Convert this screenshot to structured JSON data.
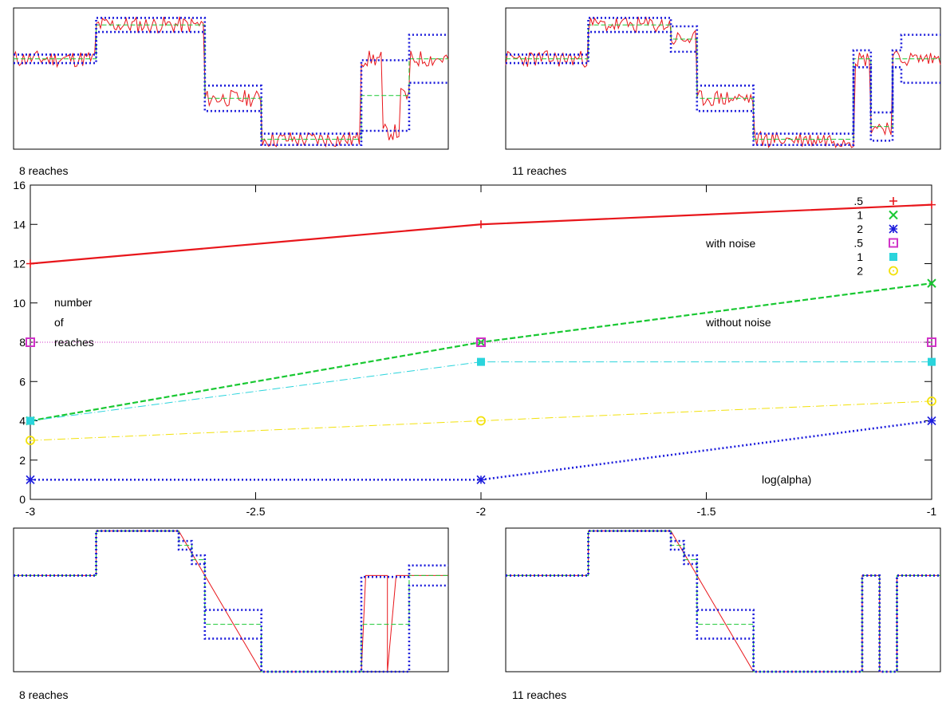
{
  "chart_data": [
    {
      "type": "line",
      "panel": "top-left",
      "caption": "8 reaches",
      "description_series": [
        {
          "name": "",
          "style": "noisy signal",
          "color": "#e8161b"
        },
        {
          "name": "",
          "style": "fitted levels",
          "color": "#19c832"
        },
        {
          "name": "",
          "style": "band",
          "color": "#1c1cdc"
        }
      ]
    },
    {
      "type": "line",
      "panel": "top-right",
      "caption": "11 reaches"
    },
    {
      "type": "line",
      "panel": "main",
      "x": [
        -3,
        -2,
        -1
      ],
      "xlim": [
        -3,
        -1
      ],
      "ylim": [
        0,
        16
      ],
      "xticks": [
        "-3",
        "-2.5",
        "-2",
        "-1.5",
        "-1"
      ],
      "yticks": [
        "0",
        "2",
        "4",
        "6",
        "8",
        "10",
        "12",
        "14",
        "16"
      ],
      "ylabel_lines": [
        "number",
        "of",
        "reaches"
      ],
      "xlabel": "log(alpha)",
      "annotations": [
        "with noise",
        "without  noise"
      ],
      "legend_position": "top-right",
      "series": [
        {
          "name": ".5",
          "group": "with noise",
          "values": [
            12,
            14,
            15
          ],
          "color": "#e8161b",
          "marker": "plus",
          "dash": "none"
        },
        {
          "name": "1",
          "group": "with noise",
          "values": [
            4,
            8,
            11
          ],
          "color": "#19c832",
          "marker": "cross",
          "dash": "dashed"
        },
        {
          "name": "2",
          "group": "with noise",
          "values": [
            1,
            1,
            4
          ],
          "color": "#1c1cdc",
          "marker": "star",
          "dash": "dotted"
        },
        {
          "name": ".5",
          "group": "without noise",
          "values": [
            8,
            8,
            8
          ],
          "color": "#d033c8",
          "marker": "square-open",
          "dash": "dotted-fine"
        },
        {
          "name": "1",
          "group": "without noise",
          "values": [
            4,
            7,
            7
          ],
          "color": "#2ad4dc",
          "marker": "square-filled",
          "dash": "dash-dot"
        },
        {
          "name": "2",
          "group": "without noise",
          "values": [
            3,
            4,
            5
          ],
          "color": "#f2e10a",
          "marker": "circle-open",
          "dash": "dash-dot"
        }
      ]
    },
    {
      "type": "line",
      "panel": "bottom-left",
      "caption": "8 reaches"
    },
    {
      "type": "line",
      "panel": "bottom-right",
      "caption": "11 reaches"
    }
  ]
}
